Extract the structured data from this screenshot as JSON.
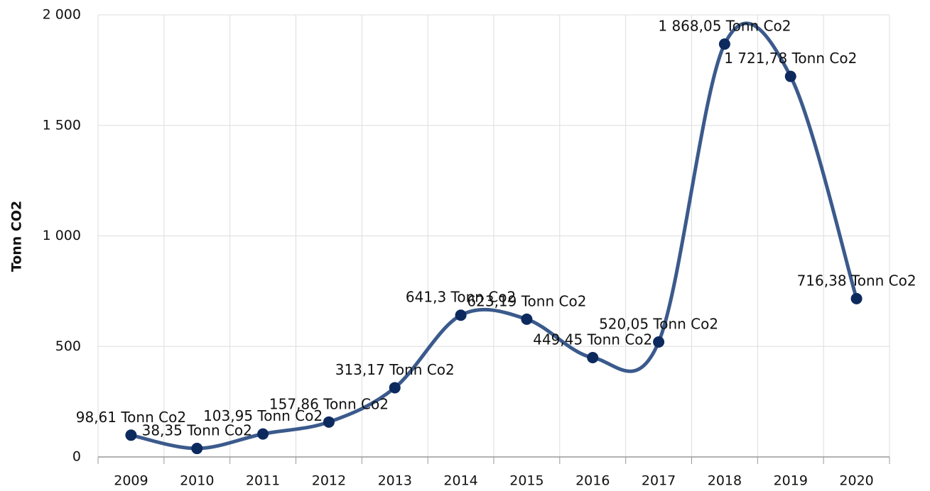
{
  "chart_data": {
    "type": "line",
    "y_label": "Tonn CO2",
    "categories": [
      "2009",
      "2010",
      "2011",
      "2012",
      "2013",
      "2014",
      "2015",
      "2016",
      "2017",
      "2018",
      "2019",
      "2020"
    ],
    "series": [
      {
        "name": "Tonn CO2",
        "color": "#3b5a8c",
        "marker_color": "#0d2a5e",
        "values": [
          98.61,
          38.35,
          103.95,
          157.86,
          313.17,
          641.3,
          623.19,
          449.45,
          520.05,
          1868.05,
          1721.78,
          716.38
        ],
        "value_labels": [
          "98,61 Tonn Co2",
          "38,35 Tonn Co2",
          "103,95 Tonn Co2",
          "157,86 Tonn Co2",
          "313,17 Tonn Co2",
          "641,3 Tonn Co2",
          "623,19 Tonn Co2",
          "449,45 Tonn Co2",
          "520,05 Tonn Co2",
          "1 868,05 Tonn Co2",
          "1 721,78 Tonn Co2",
          "716,38 Tonn Co2"
        ]
      }
    ],
    "ylim": [
      0,
      2000
    ],
    "yticks": [
      0,
      500,
      {
        "value": 1000,
        "label": "1 000"
      },
      {
        "value": 1500,
        "label": "1 500"
      },
      {
        "value": 2000,
        "label": "2 000"
      }
    ],
    "grid": true,
    "smooth": true
  }
}
